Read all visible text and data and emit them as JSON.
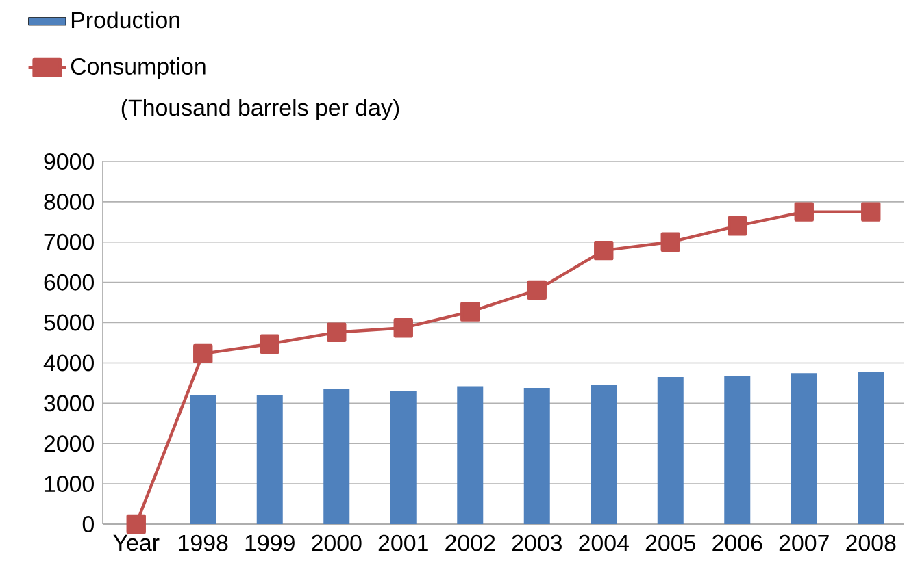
{
  "chart_data": {
    "type": "bar",
    "ylabel": "(Thousand barrels per day)",
    "categories": [
      "Year",
      "1998",
      "1999",
      "2000",
      "2001",
      "2002",
      "2003",
      "2004",
      "2005",
      "2006",
      "2007",
      "2008"
    ],
    "series": [
      {
        "name": "Production",
        "color": "#4f81bd",
        "values": [
          null,
          3200,
          3200,
          3350,
          3300,
          3420,
          3380,
          3460,
          3650,
          3670,
          3750,
          3780
        ]
      },
      {
        "name": "Consumption",
        "type": "line",
        "color": "#c0504d",
        "marker": "square",
        "values": [
          0,
          4230,
          4470,
          4760,
          4870,
          5270,
          5810,
          6790,
          7000,
          7400,
          7750,
          7750
        ]
      }
    ],
    "ylim": [
      0,
      9000
    ],
    "yticks": [
      0,
      1000,
      2000,
      3000,
      4000,
      5000,
      6000,
      7000,
      8000,
      9000
    ],
    "grid": "y",
    "legend": "top left"
  }
}
